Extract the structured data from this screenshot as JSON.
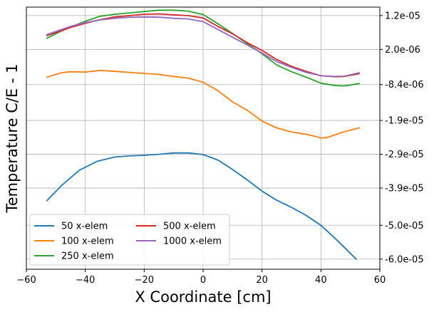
{
  "chart_data": {
    "type": "line",
    "title": "",
    "xlabel": "X Coordinate [cm]",
    "ylabel": "Temperature C/E - 1",
    "xlim": [
      -60,
      60
    ],
    "ylim": [
      -6.3e-05,
      1.45e-05
    ],
    "grid": true,
    "y_axis_side": "right",
    "x_ticks": [
      -60,
      -40,
      -20,
      0,
      20,
      40,
      60
    ],
    "x_tick_labels": [
      "−60",
      "−40",
      "−20",
      "0",
      "20",
      "40",
      "60"
    ],
    "y_ticks": [
      1.2e-05,
      2e-06,
      -8.4e-06,
      -1.9e-05,
      -2.9e-05,
      -3.9e-05,
      -5e-05,
      -6e-05
    ],
    "y_tick_labels": [
      "1.2e-05",
      "2.0e-06",
      "-8.4e-06",
      "-1.9e-05",
      "-2.9e-05",
      "-3.9e-05",
      "-5.0e-05",
      "-6.0e-05"
    ],
    "legend": {
      "position": "lower-left",
      "columns": 2
    },
    "series": [
      {
        "name": "50 x-elem",
        "color": "#1f77b4",
        "x": [
          -53,
          -48,
          -42,
          -36,
          -30,
          -25,
          -20,
          -15,
          -10,
          -5,
          0,
          5,
          10,
          15,
          20,
          25,
          30,
          35,
          40,
          45,
          52
        ],
        "y": [
          -4.27e-05,
          -3.82e-05,
          -3.37e-05,
          -3.11e-05,
          -2.98e-05,
          -2.95e-05,
          -2.93e-05,
          -2.9e-05,
          -2.86e-05,
          -2.86e-05,
          -2.91e-05,
          -3.07e-05,
          -3.35e-05,
          -3.66e-05,
          -3.99e-05,
          -4.26e-05,
          -4.47e-05,
          -4.71e-05,
          -5e-05,
          -5.4e-05,
          -6e-05
        ]
      },
      {
        "name": "100 x-elem",
        "color": "#ff7f0e",
        "x": [
          -53,
          -48,
          -45,
          -40,
          -35,
          -30,
          -25,
          -20,
          -15,
          -10,
          -5,
          0,
          5,
          10,
          15,
          20,
          25,
          30,
          35,
          38,
          40,
          42,
          45,
          48,
          53
        ],
        "y": [
          -6.2e-06,
          -4.9e-06,
          -4.6e-06,
          -4.7e-06,
          -4.2e-06,
          -4.5e-06,
          -4.8e-06,
          -5.1e-06,
          -5.4e-06,
          -6e-06,
          -6.5e-06,
          -7.7e-06,
          -1.02e-05,
          -1.35e-05,
          -1.6e-05,
          -1.92e-05,
          -2.12e-05,
          -2.24e-05,
          -2.31e-05,
          -2.37e-05,
          -2.42e-05,
          -2.41e-05,
          -2.32e-05,
          -2.23e-05,
          -2.12e-05
        ]
      },
      {
        "name": "250 x-elem",
        "color": "#2ca02c",
        "x": [
          -53,
          -48,
          -45,
          -40,
          -35,
          -30,
          -25,
          -20,
          -15,
          -10,
          -5,
          0,
          5,
          10,
          15,
          20,
          25,
          30,
          35,
          40,
          45,
          48,
          53
        ],
        "y": [
          5.3e-06,
          7.5e-06,
          8.6e-06,
          1.03e-05,
          1.18e-05,
          1.24e-05,
          1.28e-05,
          1.32e-05,
          1.36e-05,
          1.36e-05,
          1.33e-05,
          1.23e-05,
          9.6e-06,
          6.7e-06,
          3.7e-06,
          7e-07,
          -2.6e-06,
          -4.6e-06,
          -6.2e-06,
          -8e-06,
          -8.7e-06,
          -8.8e-06,
          -8.1e-06
        ]
      },
      {
        "name": "500 x-elem",
        "color": "#d62728",
        "x": [
          -53,
          -48,
          -45,
          -40,
          -35,
          -30,
          -25,
          -20,
          -15,
          -10,
          -5,
          0,
          5,
          10,
          15,
          20,
          25,
          30,
          35,
          40,
          45,
          48,
          53
        ],
        "y": [
          6.1e-06,
          7.5e-06,
          8.5e-06,
          9.7e-06,
          1.08e-05,
          1.16e-05,
          1.2e-05,
          1.24e-05,
          1.25e-05,
          1.22e-05,
          1.2e-05,
          1.13e-05,
          8.8e-06,
          6.6e-06,
          4e-06,
          1.7e-06,
          -1e-06,
          -3e-06,
          -4.5e-06,
          -5.8e-06,
          -6.1e-06,
          -6e-06,
          -5.2e-06
        ]
      },
      {
        "name": "1000 x-elem",
        "color": "#9467bd",
        "x": [
          -53,
          -48,
          -45,
          -40,
          -35,
          -30,
          -25,
          -20,
          -15,
          -10,
          -5,
          0,
          5,
          10,
          15,
          20,
          25,
          30,
          35,
          40,
          45,
          48,
          53
        ],
        "y": [
          6.4e-06,
          7.9e-06,
          8.8e-06,
          9.9e-06,
          1.07e-05,
          1.12e-05,
          1.15e-05,
          1.16e-05,
          1.15e-05,
          1.12e-05,
          1.1e-05,
          1.02e-05,
          7.9e-06,
          5.6e-06,
          3.3e-06,
          9e-07,
          -1.6e-06,
          -3.3e-06,
          -4.8e-06,
          -5.8e-06,
          -6e-06,
          -5.9e-06,
          -4.9e-06
        ]
      }
    ]
  }
}
